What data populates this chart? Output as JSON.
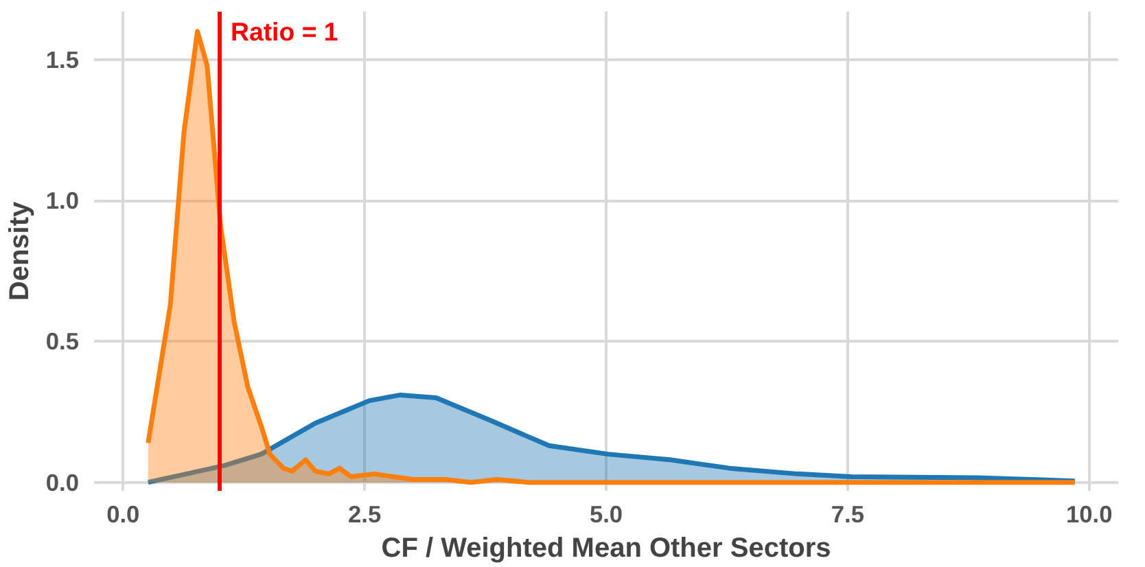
{
  "chart_data": {
    "type": "area",
    "xlabel": "CF / Weighted Mean Other Sectors",
    "ylabel": "Density",
    "series": [
      {
        "color": "#1f77b4",
        "x": [
          0.26,
          1.05,
          1.43,
          1.99,
          2.55,
          2.87,
          3.24,
          3.8,
          4.41,
          5.02,
          5.66,
          6.28,
          6.98,
          7.54,
          8.84,
          9.85
        ],
        "values": [
          0.0,
          0.06,
          0.1,
          0.21,
          0.29,
          0.31,
          0.3,
          0.22,
          0.13,
          0.1,
          0.08,
          0.05,
          0.03,
          0.02,
          0.016,
          0.005
        ]
      },
      {
        "color": "#ff7f0e",
        "x": [
          0.26,
          0.49,
          0.63,
          0.77,
          0.87,
          1.01,
          1.15,
          1.29,
          1.43,
          1.52,
          1.66,
          1.75,
          1.89,
          1.99,
          2.13,
          2.24,
          2.36,
          2.6,
          3.0,
          3.34,
          3.6,
          3.87,
          4.2,
          6.0,
          9.85
        ],
        "values": [
          0.14,
          0.63,
          1.24,
          1.6,
          1.48,
          0.91,
          0.57,
          0.34,
          0.2,
          0.1,
          0.05,
          0.04,
          0.08,
          0.04,
          0.03,
          0.05,
          0.02,
          0.03,
          0.01,
          0.01,
          0.0,
          0.01,
          0.0,
          0.0,
          0.0
        ]
      }
    ],
    "xlim": [
      -0.3,
      10.3
    ],
    "ylim": [
      -0.03,
      1.67
    ],
    "xticks": [
      {
        "value": 0,
        "label": "0.0"
      },
      2.5,
      {
        "value": 5,
        "label": "5.0"
      },
      7.5,
      {
        "value": 10,
        "label": "10.0"
      }
    ],
    "yticks": [
      {
        "value": 0,
        "label": "0.0"
      },
      0.5,
      {
        "value": 1,
        "label": "1.0"
      },
      1.5
    ],
    "grid": true,
    "ref_lines": [
      {
        "axis": "x",
        "value": 1,
        "label": "Ratio = 1",
        "color": "#ff0000"
      }
    ]
  }
}
